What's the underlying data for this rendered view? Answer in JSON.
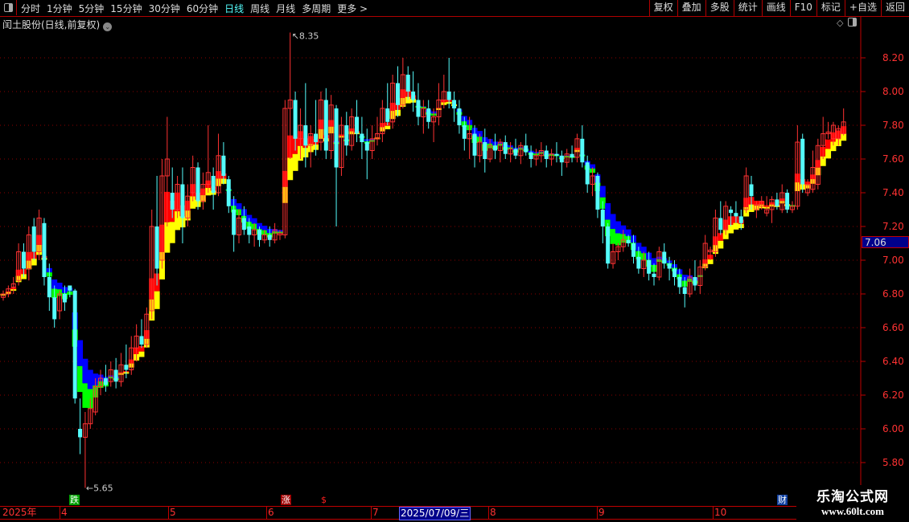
{
  "toolbar": {
    "periods": [
      "分时",
      "1分钟",
      "5分钟",
      "15分钟",
      "30分钟",
      "60分钟",
      "日线",
      "周线",
      "月线",
      "多周期",
      "更多 >"
    ],
    "active_period": "日线",
    "right_buttons": [
      "复权",
      "叠加",
      "多股",
      "统计",
      "画线",
      "F10",
      "标记",
      "+自选",
      "返回"
    ]
  },
  "title": "闰土股份(日线,前复权)",
  "chart_controls": {
    "diamond": "◇"
  },
  "colors": {
    "up": "#ff3232",
    "down": "#54fcfc",
    "doji": "#ffffff",
    "rise_fast": "#ff0000",
    "rise_slow": "#ffff00",
    "fall_fast": "#0000ff",
    "fall_slow": "#00ff00",
    "grid": "#8b0000",
    "axis": "#ff3232"
  },
  "chart_data": {
    "type": "candlestick",
    "y_ticks": [
      "8.20",
      "8.00",
      "7.80",
      "7.60",
      "7.40",
      "7.20",
      "7.00",
      "6.80",
      "6.60",
      "6.40",
      "6.20",
      "6.00",
      "5.80"
    ],
    "ylim": [
      5.7,
      8.4
    ],
    "grid": true,
    "current_price": "7.06",
    "high_label": "8.35",
    "low_label": "5.65",
    "ohlc": [
      [
        6.78,
        6.82,
        6.76,
        6.8
      ],
      [
        6.8,
        6.85,
        6.78,
        6.83
      ],
      [
        6.84,
        6.9,
        6.8,
        6.86
      ],
      [
        6.88,
        7.1,
        6.85,
        7.05
      ],
      [
        7.05,
        7.1,
        6.9,
        6.95
      ],
      [
        6.95,
        7.2,
        6.88,
        7.15
      ],
      [
        7.2,
        7.25,
        7.0,
        7.05
      ],
      [
        7.05,
        7.3,
        7.0,
        7.25
      ],
      [
        7.22,
        7.25,
        6.85,
        6.9
      ],
      [
        6.9,
        6.98,
        6.7,
        6.78
      ],
      [
        6.78,
        6.85,
        6.6,
        6.65
      ],
      [
        6.7,
        6.82,
        6.65,
        6.8
      ],
      [
        6.8,
        6.85,
        6.7,
        6.75
      ],
      [
        6.85,
        6.85,
        6.78,
        6.82
      ],
      [
        6.82,
        6.83,
        6.15,
        6.18
      ],
      [
        6.0,
        6.18,
        5.85,
        5.95
      ],
      [
        5.95,
        6.1,
        5.65,
        6.03
      ],
      [
        6.03,
        6.18,
        6.0,
        6.12
      ],
      [
        6.1,
        6.3,
        6.08,
        6.25
      ],
      [
        6.25,
        6.35,
        6.2,
        6.3
      ],
      [
        6.3,
        6.38,
        6.22,
        6.26
      ],
      [
        6.28,
        6.4,
        6.25,
        6.35
      ],
      [
        6.35,
        6.42,
        6.24,
        6.28
      ],
      [
        6.28,
        6.45,
        6.25,
        6.38
      ],
      [
        6.38,
        6.5,
        6.3,
        6.35
      ],
      [
        6.35,
        6.55,
        6.32,
        6.48
      ],
      [
        6.48,
        6.62,
        6.4,
        6.55
      ],
      [
        6.55,
        6.65,
        6.48,
        6.5
      ],
      [
        6.5,
        6.72,
        6.48,
        6.68
      ],
      [
        6.7,
        7.3,
        6.65,
        7.2
      ],
      [
        7.2,
        7.5,
        6.85,
        6.95
      ],
      [
        7.0,
        7.6,
        6.95,
        7.5
      ],
      [
        7.5,
        7.85,
        7.2,
        7.6
      ],
      [
        7.4,
        7.55,
        7.25,
        7.3
      ],
      [
        7.3,
        7.5,
        7.25,
        7.45
      ],
      [
        7.45,
        7.55,
        7.1,
        7.25
      ],
      [
        7.25,
        7.45,
        7.2,
        7.38
      ],
      [
        7.4,
        7.62,
        7.35,
        7.55
      ],
      [
        7.55,
        7.58,
        7.3,
        7.35
      ],
      [
        7.35,
        7.52,
        7.3,
        7.45
      ],
      [
        7.45,
        7.8,
        7.4,
        7.52
      ],
      [
        7.5,
        7.55,
        7.3,
        7.4
      ],
      [
        7.4,
        7.75,
        7.38,
        7.62
      ],
      [
        7.62,
        7.7,
        7.45,
        7.5
      ],
      [
        7.48,
        7.5,
        7.28,
        7.32
      ],
      [
        7.3,
        7.38,
        7.05,
        7.15
      ],
      [
        7.15,
        7.3,
        7.1,
        7.25
      ],
      [
        7.25,
        7.32,
        7.15,
        7.18
      ],
      [
        7.2,
        7.25,
        7.1,
        7.15
      ],
      [
        7.15,
        7.22,
        7.08,
        7.18
      ],
      [
        7.18,
        7.2,
        7.08,
        7.12
      ],
      [
        7.12,
        7.18,
        7.1,
        7.15
      ],
      [
        7.15,
        7.2,
        7.08,
        7.12
      ],
      [
        7.12,
        7.22,
        7.1,
        7.18
      ],
      [
        7.15,
        7.18,
        7.12,
        7.16
      ],
      [
        7.15,
        7.95,
        7.13,
        7.9
      ],
      [
        7.9,
        8.35,
        7.6,
        7.95
      ],
      [
        7.95,
        8.0,
        7.65,
        7.72
      ],
      [
        7.72,
        7.9,
        7.6,
        7.8
      ],
      [
        7.8,
        8.05,
        7.55,
        7.68
      ],
      [
        7.68,
        7.8,
        7.55,
        7.75
      ],
      [
        7.75,
        7.95,
        7.62,
        7.7
      ],
      [
        7.7,
        8.0,
        7.65,
        7.95
      ],
      [
        7.95,
        8.02,
        7.6,
        7.65
      ],
      [
        7.65,
        7.98,
        7.6,
        7.92
      ],
      [
        7.9,
        7.92,
        7.2,
        7.55
      ],
      [
        7.55,
        7.85,
        7.5,
        7.8
      ],
      [
        7.8,
        7.88,
        7.62,
        7.68
      ],
      [
        7.68,
        7.9,
        7.65,
        7.85
      ],
      [
        7.85,
        7.95,
        7.7,
        7.75
      ],
      [
        7.75,
        7.85,
        7.6,
        7.7
      ],
      [
        7.7,
        7.78,
        7.48,
        7.65
      ],
      [
        7.65,
        7.8,
        7.6,
        7.72
      ],
      [
        7.72,
        7.85,
        7.68,
        7.75
      ],
      [
        7.75,
        7.95,
        7.7,
        7.9
      ],
      [
        7.9,
        8.05,
        7.8,
        7.82
      ],
      [
        7.82,
        8.1,
        7.78,
        8.05
      ],
      [
        8.05,
        8.15,
        7.85,
        7.92
      ],
      [
        7.92,
        8.2,
        7.9,
        8.1
      ],
      [
        8.1,
        8.15,
        7.95,
        8.0
      ],
      [
        8.0,
        8.12,
        7.88,
        7.95
      ],
      [
        7.95,
        8.05,
        7.8,
        7.85
      ],
      [
        7.85,
        7.95,
        7.75,
        7.9
      ],
      [
        7.9,
        7.95,
        7.78,
        7.82
      ],
      [
        7.82,
        7.9,
        7.7,
        7.85
      ],
      [
        7.85,
        8.05,
        7.8,
        7.95
      ],
      [
        7.95,
        8.1,
        7.9,
        8.0
      ],
      [
        8.0,
        8.2,
        7.9,
        7.95
      ],
      [
        7.95,
        8.0,
        7.82,
        7.9
      ],
      [
        7.9,
        7.95,
        7.75,
        7.8
      ],
      [
        7.8,
        7.85,
        7.65,
        7.72
      ],
      [
        7.72,
        7.85,
        7.6,
        7.75
      ],
      [
        7.75,
        7.8,
        7.55,
        7.62
      ],
      [
        7.62,
        7.75,
        7.58,
        7.7
      ],
      [
        7.7,
        7.78,
        7.52,
        7.6
      ],
      [
        7.6,
        7.72,
        7.58,
        7.68
      ],
      [
        7.68,
        7.75,
        7.6,
        7.65
      ],
      [
        7.65,
        7.72,
        7.58,
        7.7
      ],
      [
        7.7,
        7.74,
        7.6,
        7.63
      ],
      [
        7.63,
        7.7,
        7.58,
        7.66
      ],
      [
        7.66,
        7.72,
        7.6,
        7.62
      ],
      [
        7.62,
        7.7,
        7.57,
        7.68
      ],
      [
        7.68,
        7.75,
        7.62,
        7.64
      ],
      [
        7.64,
        7.68,
        7.55,
        7.6
      ],
      [
        7.6,
        7.66,
        7.56,
        7.62
      ],
      [
        7.62,
        7.7,
        7.58,
        7.65
      ],
      [
        7.65,
        7.68,
        7.55,
        7.6
      ],
      [
        7.6,
        7.66,
        7.56,
        7.63
      ],
      [
        7.63,
        7.7,
        7.58,
        7.62
      ],
      [
        7.62,
        7.65,
        7.5,
        7.58
      ],
      [
        7.58,
        7.66,
        7.55,
        7.63
      ],
      [
        7.63,
        7.68,
        7.58,
        7.61
      ],
      [
        7.61,
        7.75,
        7.58,
        7.72
      ],
      [
        7.72,
        7.8,
        7.55,
        7.58
      ],
      [
        7.58,
        7.62,
        7.4,
        7.45
      ],
      [
        7.45,
        7.55,
        7.38,
        7.5
      ],
      [
        7.5,
        7.52,
        7.25,
        7.3
      ],
      [
        7.3,
        7.35,
        7.1,
        7.2
      ],
      [
        7.2,
        7.22,
        6.95,
        6.98
      ],
      [
        6.98,
        7.1,
        6.95,
        7.05
      ],
      [
        7.05,
        7.1,
        7.0,
        7.08
      ],
      [
        7.08,
        7.18,
        7.05,
        7.12
      ],
      [
        7.12,
        7.15,
        7.08,
        7.1
      ],
      [
        7.1,
        7.15,
        6.98,
        7.02
      ],
      [
        7.02,
        7.08,
        6.92,
        6.95
      ],
      [
        6.95,
        7.05,
        6.9,
        7.0
      ],
      [
        7.0,
        7.05,
        6.88,
        6.92
      ],
      [
        6.92,
        6.98,
        6.85,
        6.9
      ],
      [
        6.9,
        7.08,
        6.88,
        7.05
      ],
      [
        7.05,
        7.1,
        6.95,
        6.98
      ],
      [
        6.98,
        7.02,
        6.88,
        6.95
      ],
      [
        6.95,
        7.0,
        6.85,
        6.9
      ],
      [
        6.9,
        6.95,
        6.8,
        6.84
      ],
      [
        6.84,
        6.9,
        6.72,
        6.8
      ],
      [
        6.8,
        6.95,
        6.78,
        6.9
      ],
      [
        6.9,
        7.0,
        6.82,
        6.85
      ],
      [
        6.85,
        7.0,
        6.8,
        6.96
      ],
      [
        6.96,
        7.15,
        6.94,
        7.1
      ],
      [
        7.05,
        7.08,
        7.0,
        7.06
      ],
      [
        7.05,
        7.3,
        7.02,
        7.25
      ],
      [
        7.25,
        7.35,
        7.15,
        7.18
      ],
      [
        7.18,
        7.35,
        7.15,
        7.32
      ],
      [
        7.3,
        7.32,
        7.2,
        7.28
      ],
      [
        7.28,
        7.35,
        7.22,
        7.26
      ],
      [
        7.26,
        7.3,
        7.18,
        7.22
      ],
      [
        7.3,
        7.55,
        7.28,
        7.5
      ],
      [
        7.45,
        7.5,
        7.3,
        7.38
      ],
      [
        7.3,
        7.35,
        7.25,
        7.33
      ],
      [
        7.32,
        7.38,
        7.3,
        7.35
      ],
      [
        7.28,
        7.38,
        7.26,
        7.3
      ],
      [
        7.3,
        7.38,
        7.22,
        7.36
      ],
      [
        7.36,
        7.4,
        7.3,
        7.32
      ],
      [
        7.3,
        7.45,
        7.28,
        7.4
      ],
      [
        7.4,
        7.42,
        7.28,
        7.3
      ],
      [
        7.3,
        7.35,
        7.28,
        7.32
      ],
      [
        7.32,
        7.8,
        7.3,
        7.7
      ],
      [
        7.72,
        7.75,
        7.4,
        7.45
      ],
      [
        7.4,
        7.48,
        7.38,
        7.45
      ],
      [
        7.42,
        7.65,
        7.4,
        7.55
      ],
      [
        7.45,
        7.72,
        7.42,
        7.68
      ],
      [
        7.68,
        7.85,
        7.6,
        7.75
      ],
      [
        7.75,
        7.82,
        7.72,
        7.76
      ],
      [
        7.72,
        7.82,
        7.68,
        7.8
      ],
      [
        7.72,
        7.8,
        7.68,
        7.78
      ],
      [
        7.75,
        7.9,
        7.74,
        7.82
      ]
    ]
  },
  "xaxis": {
    "year": "2025年",
    "months": [
      "4",
      "5",
      "6",
      "7",
      "8",
      "9",
      "10"
    ],
    "cursor_date": "2025/07/09/三"
  },
  "markers": [
    {
      "text": "跌",
      "color": "#00a000"
    },
    {
      "text": "涨",
      "color": "#a00000"
    },
    {
      "text": "$",
      "color": "#ff2020"
    },
    {
      "text": "财",
      "color": "#1040a0"
    }
  ],
  "watermark": {
    "name": "乐淘公式网",
    "url": "www.60lt.com"
  }
}
